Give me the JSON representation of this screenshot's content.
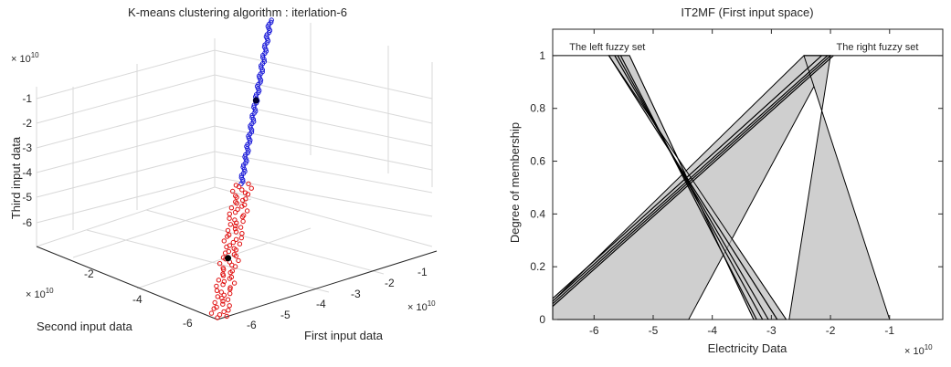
{
  "chart_data": [
    {
      "type": "scatter",
      "subtype": "3d",
      "title": "K-means clustering algorithm : iterlation-6",
      "xlabel": "First input data",
      "ylabel": "Second input data",
      "zlabel": "Third input data",
      "axis_exponent": "× 10",
      "axis_exponent_power": "10",
      "x_ticks": [
        "-6",
        "-5",
        "-4",
        "-3",
        "-2",
        "-1"
      ],
      "y_ticks": [
        "-6",
        "-4",
        "-2"
      ],
      "z_ticks": [
        "-1",
        "-2",
        "-3",
        "-4",
        "-5",
        "-6"
      ],
      "series": [
        {
          "color": "#1a1ad8",
          "marker": "open-circle",
          "extent": [
            0.45,
            1.0
          ]
        },
        {
          "color": "#e01010",
          "marker": "open-circle",
          "extent": [
            0.0,
            0.45
          ]
        }
      ],
      "centroids": [
        {
          "color": "#000033",
          "position": 0.73
        },
        {
          "color": "#000000",
          "position": 0.2
        }
      ],
      "colors": {
        "cluster_blue": "#1a1ad8",
        "cluster_red": "#e01010",
        "centroid": "#000000"
      }
    },
    {
      "type": "area",
      "title": "IT2MF (First input space)",
      "xlabel": "Electricity Data",
      "ylabel": "Degree of membership",
      "axis_exponent": "× 10",
      "axis_exponent_power": "10",
      "xlim": [
        -6.7,
        -0.1
      ],
      "ylim": [
        0,
        1.1
      ],
      "x_ticks": [
        "-6",
        "-5",
        "-4",
        "-3",
        "-2",
        "-1"
      ],
      "x_tick_values": [
        -6,
        -5,
        -4,
        -3,
        -2,
        -1
      ],
      "y_ticks": [
        "0",
        "0.2",
        "0.4",
        "0.6",
        "0.8",
        "1"
      ],
      "y_tick_values": [
        0,
        0.2,
        0.4,
        0.6,
        0.8,
        1
      ],
      "annotations": [
        {
          "text": "The left fuzzy set",
          "x": -5.8,
          "y": 1.02
        },
        {
          "text": "The right fuzzy set",
          "x": -1.9,
          "y": 1.02
        }
      ],
      "left_set": {
        "upper": [
          [
            -6.7,
            1
          ],
          [
            -5.75,
            1
          ],
          [
            -2.75,
            0
          ]
        ],
        "lower": [
          [
            -5.4,
            1
          ],
          [
            -3.3,
            0
          ]
        ],
        "lines": [
          [
            [
              -5.75,
              1
            ],
            [
              -2.9,
              0
            ]
          ],
          [
            [
              -5.65,
              1
            ],
            [
              -3.05,
              0
            ]
          ],
          [
            [
              -5.6,
              1
            ],
            [
              -3.15,
              0
            ]
          ],
          [
            [
              -5.55,
              1
            ],
            [
              -3.25,
              0
            ]
          ]
        ]
      },
      "right_set": {
        "upper": [
          [
            -6.7,
            0.07
          ],
          [
            -2.45,
            1
          ],
          [
            -0.1,
            1
          ]
        ],
        "lower": [
          [
            -4.4,
            0
          ],
          [
            -2.0,
            1
          ]
        ],
        "lines": [
          [
            [
              -6.7,
              0.06
            ],
            [
              -2.0,
              1
            ]
          ],
          [
            [
              -6.7,
              0.07
            ],
            [
              -2.05,
              1
            ]
          ],
          [
            [
              -6.7,
              0.05
            ],
            [
              -1.95,
              1
            ]
          ],
          [
            [
              -6.7,
              0.08
            ],
            [
              -2.15,
              1
            ]
          ]
        ],
        "right_end": [
          [
            -2.45,
            1
          ],
          [
            -1.0,
            0
          ]
        ]
      },
      "colors": {
        "fill": "#cfcfcf",
        "line": "#000000"
      }
    }
  ]
}
